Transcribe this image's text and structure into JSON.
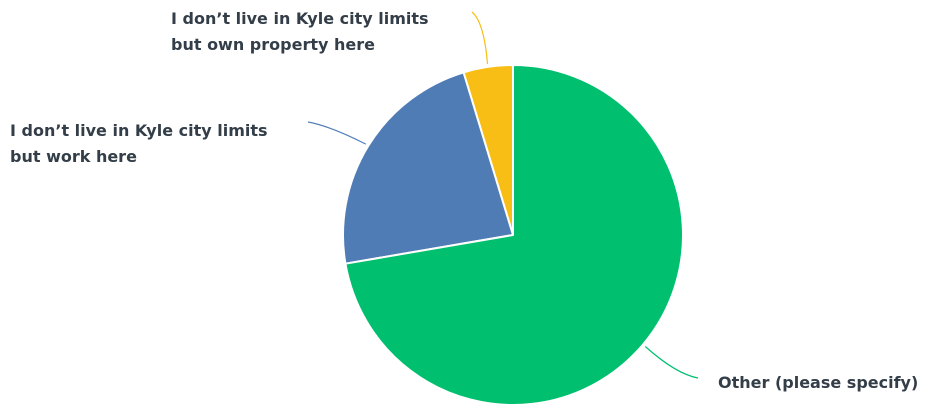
{
  "chart_data": {
    "type": "pie",
    "slices": [
      {
        "label": "I don’t live in Kyle city limits but own property here",
        "lines": [
          "I don’t live in Kyle city limits",
          "but own property here"
        ],
        "value": 4.7,
        "color": "#f8be15"
      },
      {
        "label": "I don’t live in Kyle city limits but work here",
        "lines": [
          "I don’t live in Kyle city limits",
          "but work here"
        ],
        "value": 23.0,
        "color": "#507cb6"
      },
      {
        "label": "Other (please specify)",
        "lines": [
          "Other (please specify)"
        ],
        "value": 72.3,
        "color": "#00bf6f"
      }
    ],
    "legend": "none",
    "start_angle": "12 o'clock",
    "direction": "counter-clockwise"
  }
}
